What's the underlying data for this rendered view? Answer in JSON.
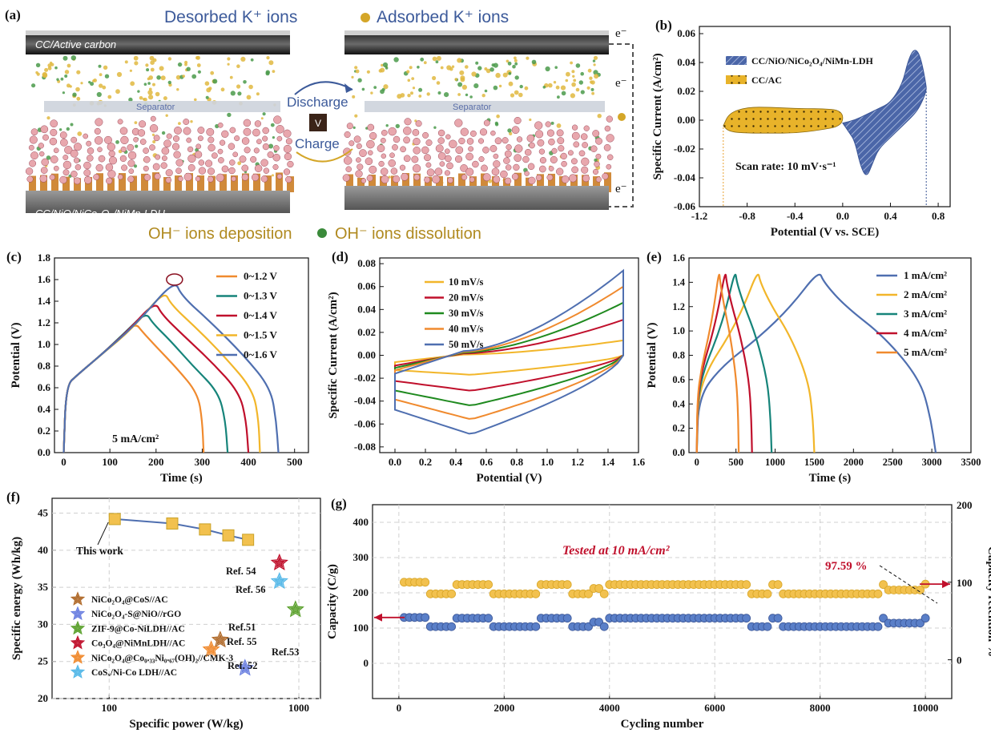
{
  "colors": {
    "blue": "#4f6fb0",
    "orange": "#f08a2e",
    "teal": "#16847a",
    "red": "#c0102c",
    "yellow": "#f2b62a",
    "green": "#1f8a1f",
    "grid": "#c9c9c9",
    "bandBlue": "#7f8fb8",
    "gold": "#c9a227"
  },
  "panelA": {
    "label": "(a)",
    "title_left": "Desorbed K⁺ ions",
    "title_right": "Adsorbed K⁺ ions",
    "cc_label": "CC/Active carbon",
    "separator_left": "Separator",
    "separator_right": "Separator",
    "discharge": "Discharge",
    "charge": "Charge",
    "v": "V",
    "electrode": "CC/NiO/NiCo₂O₄/NiMn-LDH",
    "e1": "e⁻",
    "e2": "e⁻",
    "e3": "e⁻",
    "bottom_left": "OH⁻ ions deposition",
    "bottom_right": "OH⁻ ions dissolution"
  },
  "chart_data": [
    {
      "id": "b",
      "panel_label": "(b)",
      "type": "area",
      "xlabel": "Potential (V vs. SCE)",
      "ylabel": "Specific Current (A/cm²)",
      "xlim": [
        -1.2,
        0.9
      ],
      "ylim": [
        -0.06,
        0.065
      ],
      "xticks": [
        "-1.2",
        "-0.8",
        "-0.4",
        "0.0",
        "0.4",
        "0.8"
      ],
      "yticks": [
        "-0.06",
        "-0.04",
        "-0.02",
        "0.00",
        "0.02",
        "0.04",
        "0.06"
      ],
      "annotation": "Scan rate: 10 mV·s⁻¹",
      "legend": [
        "CC/NiO/NiCo₂O₄/NiMn-LDH",
        "CC/AC"
      ],
      "series": [
        {
          "name": "CC/NiO/NiCo₂O₄/NiMn-LDH",
          "x": [
            0,
            0.1,
            0.2,
            0.3,
            0.4,
            0.5,
            0.55,
            0.6,
            0.65,
            0.7,
            0.7,
            0.65,
            0.6,
            0.5,
            0.4,
            0.3,
            0.25,
            0.2,
            0.15,
            0.1,
            0.05,
            0
          ],
          "y": [
            -0.002,
            0.0,
            0.004,
            0.008,
            0.012,
            0.025,
            0.042,
            0.05,
            0.045,
            0.024,
            0.02,
            0.01,
            0.004,
            -0.004,
            -0.012,
            -0.02,
            -0.03,
            -0.04,
            -0.032,
            -0.014,
            -0.008,
            -0.002
          ]
        },
        {
          "name": "CC/AC",
          "x": [
            -1.0,
            -0.95,
            -0.8,
            -0.6,
            -0.4,
            -0.2,
            0.0,
            0.0,
            -0.2,
            -0.4,
            -0.6,
            -0.8,
            -0.95,
            -1.0
          ],
          "y": [
            -0.004,
            0.005,
            0.009,
            0.009,
            0.008,
            0.008,
            0.007,
            -0.004,
            -0.007,
            -0.009,
            -0.009,
            -0.009,
            -0.008,
            -0.004
          ]
        }
      ]
    },
    {
      "id": "c",
      "panel_label": "(c)",
      "type": "line",
      "xlabel": "Time (s)",
      "ylabel": "Potential (V)",
      "xlim": [
        -20,
        530
      ],
      "ylim": [
        0,
        1.8
      ],
      "xticks": [
        "0",
        "100",
        "200",
        "300",
        "400",
        "500"
      ],
      "yticks": [
        "0.0",
        "0.2",
        "0.4",
        "0.6",
        "0.8",
        "1.0",
        "1.2",
        "1.4",
        "1.6",
        "1.8"
      ],
      "annotation": "5 mA/cm²",
      "series": [
        {
          "name": "0~1.2 V",
          "color": "#f08a2e",
          "x": [
            0,
            5,
            30,
            80,
            120,
            155,
            170,
            200,
            245,
            290,
            300,
            303
          ],
          "y": [
            0,
            0.62,
            0.72,
            0.9,
            1.05,
            1.2,
            1.12,
            0.98,
            0.78,
            0.55,
            0.3,
            0
          ]
        },
        {
          "name": "0~1.3 V",
          "color": "#16847a",
          "x": [
            0,
            5,
            30,
            80,
            130,
            178,
            192,
            230,
            280,
            335,
            350,
            355
          ],
          "y": [
            0,
            0.62,
            0.72,
            0.9,
            1.1,
            1.3,
            1.2,
            1.04,
            0.8,
            0.56,
            0.3,
            0
          ]
        },
        {
          "name": "0~1.4 V",
          "color": "#c0102c",
          "x": [
            0,
            5,
            30,
            80,
            140,
            198,
            212,
            260,
            320,
            380,
            395,
            400
          ],
          "y": [
            0,
            0.62,
            0.72,
            0.9,
            1.13,
            1.4,
            1.28,
            1.08,
            0.84,
            0.56,
            0.3,
            0
          ]
        },
        {
          "name": "0~1.5 V",
          "color": "#f2b62a",
          "x": [
            0,
            5,
            30,
            80,
            150,
            218,
            232,
            290,
            350,
            410,
            422,
            425
          ],
          "y": [
            0,
            0.62,
            0.72,
            0.9,
            1.15,
            1.5,
            1.37,
            1.14,
            0.88,
            0.58,
            0.3,
            0
          ]
        },
        {
          "name": "0~1.6 V",
          "color": "#4f6fb0",
          "x": [
            0,
            5,
            30,
            80,
            160,
            240,
            255,
            320,
            390,
            448,
            460,
            465
          ],
          "y": [
            0,
            0.62,
            0.72,
            0.9,
            1.2,
            1.6,
            1.45,
            1.2,
            0.9,
            0.6,
            0.3,
            0
          ]
        }
      ]
    },
    {
      "id": "d",
      "panel_label": "(d)",
      "type": "line",
      "xlabel": "Potential (V)",
      "ylabel": "Specific Current (A/cm²)",
      "xlim": [
        -0.1,
        1.6
      ],
      "ylim": [
        -0.085,
        0.085
      ],
      "xticks": [
        "0.0",
        "0.2",
        "0.4",
        "0.6",
        "0.8",
        "1.0",
        "1.2",
        "1.4",
        "1.6"
      ],
      "yticks": [
        "-0.08",
        "-0.06",
        "-0.04",
        "-0.02",
        "0.00",
        "0.02",
        "0.04",
        "0.06",
        "0.08"
      ],
      "series": [
        {
          "name": "10 mV/s",
          "color": "#f2b62a",
          "upper": 0.013,
          "lower": -0.017,
          "start": -0.006
        },
        {
          "name": "20 mV/s",
          "color": "#c0102c",
          "upper": 0.031,
          "lower": -0.031,
          "start": -0.009
        },
        {
          "name": "30 mV/s",
          "color": "#1f8a1f",
          "upper": 0.046,
          "lower": -0.044,
          "start": -0.011
        },
        {
          "name": "40 mV/s",
          "color": "#f08a2e",
          "upper": 0.06,
          "lower": -0.056,
          "start": -0.013
        },
        {
          "name": "50 mV/s",
          "color": "#4f6fb0",
          "upper": 0.074,
          "lower": -0.069,
          "start": -0.016
        }
      ]
    },
    {
      "id": "e",
      "panel_label": "(e)",
      "type": "line",
      "xlabel": "Time (s)",
      "ylabel": "Potential (V)",
      "xlim": [
        -100,
        3500
      ],
      "ylim": [
        0,
        1.6
      ],
      "xticks": [
        "0",
        "500",
        "1000",
        "1500",
        "2000",
        "2500",
        "3000",
        "3500"
      ],
      "yticks": [
        "0.0",
        "0.2",
        "0.4",
        "0.6",
        "0.8",
        "1.0",
        "1.2",
        "1.4",
        "1.6"
      ],
      "series": [
        {
          "name": "1 mA/cm²",
          "color": "#4f6fb0",
          "x": [
            0,
            20,
            300,
            800,
            1200,
            1560,
            1620,
            1900,
            2400,
            2850,
            2980,
            3050
          ],
          "y": [
            0,
            0.45,
            0.7,
            0.95,
            1.2,
            1.5,
            1.4,
            1.2,
            0.95,
            0.6,
            0.3,
            0
          ]
        },
        {
          "name": "2 mA/cm²",
          "color": "#f2b62a",
          "x": [
            0,
            12,
            150,
            400,
            600,
            780,
            810,
            960,
            1200,
            1420,
            1480,
            1500
          ],
          "y": [
            0,
            0.45,
            0.7,
            0.95,
            1.2,
            1.5,
            1.4,
            1.2,
            0.95,
            0.6,
            0.3,
            0
          ]
        },
        {
          "name": "3 mA/cm²",
          "color": "#16847a",
          "x": [
            0,
            10,
            100,
            260,
            380,
            490,
            510,
            610,
            760,
            900,
            940,
            955
          ],
          "y": [
            0,
            0.45,
            0.7,
            0.95,
            1.2,
            1.5,
            1.4,
            1.2,
            0.95,
            0.6,
            0.3,
            0
          ]
        },
        {
          "name": "4 mA/cm²",
          "color": "#c0102c",
          "x": [
            0,
            8,
            75,
            190,
            280,
            365,
            380,
            450,
            560,
            665,
            695,
            705
          ],
          "y": [
            0,
            0.45,
            0.7,
            0.95,
            1.2,
            1.5,
            1.4,
            1.2,
            0.95,
            0.6,
            0.3,
            0
          ]
        },
        {
          "name": "5 mA/cm²",
          "color": "#f08a2e",
          "x": [
            0,
            6,
            60,
            150,
            220,
            285,
            298,
            350,
            430,
            505,
            528,
            535
          ],
          "y": [
            0,
            0.45,
            0.7,
            0.95,
            1.2,
            1.5,
            1.4,
            1.2,
            0.95,
            0.6,
            0.3,
            0
          ]
        }
      ]
    },
    {
      "id": "f",
      "panel_label": "(f)",
      "type": "scatter",
      "xlabel": "Specific power (W/kg)",
      "ylabel": "Specific energy (Wh/kg)",
      "xscale": "log",
      "xlim": [
        50,
        1300
      ],
      "ylim": [
        20,
        47
      ],
      "xticks": [
        "100",
        "1000"
      ],
      "yticks": [
        "20",
        "25",
        "30",
        "35",
        "40",
        "45"
      ],
      "this_work_label": "This work",
      "this_work": {
        "x": [
          107,
          215,
          320,
          425,
          540
        ],
        "y": [
          44.2,
          43.6,
          42.8,
          42.0,
          41.4
        ]
      },
      "references": [
        {
          "label": "Ref. 54",
          "x": 790,
          "y": 38.3,
          "color": "#c0102c"
        },
        {
          "label": "Ref. 56",
          "x": 790,
          "y": 35.8,
          "color": "#55b8e8"
        },
        {
          "label": "Ref.51",
          "x": 385,
          "y": 27.9,
          "color": "#b06a2a"
        },
        {
          "label": "Ref. 55",
          "x": 345,
          "y": 26.6,
          "color": "#f08a2e"
        },
        {
          "label": "Ref.53",
          "x": 960,
          "y": 32.0,
          "color": "#5aa02c"
        },
        {
          "label": "Ref. 52",
          "x": 520,
          "y": 24.1,
          "color": "#6a7fe0"
        }
      ],
      "legend": [
        {
          "text": "NiCo₂O₄@CoS//AC",
          "color": "#b06a2a"
        },
        {
          "text": "NiCo₂O₄-S@NiO//rGO",
          "color": "#6a7fe0"
        },
        {
          "text": "ZIF-9@Co-NiLDH//AC",
          "color": "#5aa02c"
        },
        {
          "text": "Co₃O₄@NiMnLDH//AC",
          "color": "#c0102c"
        },
        {
          "text": "NiCo₂O₄@Co₀.₃₃Ni₀.₆₇(OH)₂//CMK-3",
          "color": "#f08a2e"
        },
        {
          "text": "CoSₓ/Ni-Co LDH//AC",
          "color": "#55b8e8"
        }
      ]
    },
    {
      "id": "g",
      "panel_label": "(g)",
      "type": "scatter",
      "xlabel": "Cycling number",
      "ylabel": "Capacity (C/g)",
      "ylabel_right": "Capacity retention %",
      "xlim": [
        -500,
        10500
      ],
      "ylim": [
        -100,
        450
      ],
      "ylim_right": [
        -50,
        200
      ],
      "xticks": [
        "0",
        "2000",
        "4000",
        "6000",
        "8000",
        "10000"
      ],
      "yticks": [
        "0",
        "100",
        "200",
        "300",
        "400"
      ],
      "yticks_right": [
        "0",
        "100",
        "200"
      ],
      "annotation": "Tested at 10 mA/cm²",
      "retention_label": "97.59 %",
      "capacity_levels": {
        "x": [
          100,
          500,
          600,
          1050,
          1750,
          2650,
          3300,
          3600,
          3700,
          3900,
          4000,
          6450,
          6650,
          7050,
          7250,
          9150,
          9250,
          10000
        ],
        "y": [
          130,
          130,
          104,
          128,
          104,
          128,
          104,
          104,
          117,
          104,
          128,
          128,
          104,
          128,
          104,
          128,
          114,
          128
        ]
      },
      "retention_levels": {
        "x": [
          100,
          500,
          600,
          1050,
          1750,
          2650,
          3300,
          3600,
          3700,
          3900,
          4000,
          6450,
          6650,
          7050,
          7250,
          9150,
          9250,
          10000
        ],
        "y": [
          100,
          100,
          85,
          97,
          85,
          97,
          85,
          85,
          92,
          85,
          97,
          97,
          85,
          97,
          85,
          97,
          90,
          97.59
        ]
      }
    }
  ]
}
